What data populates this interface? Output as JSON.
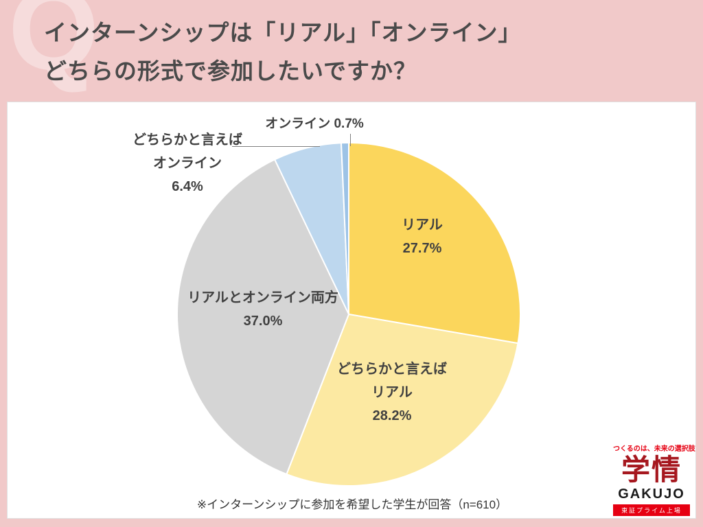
{
  "watermark": "Q",
  "header": {
    "title_line1": "インターンシップは「リアル」「オンライン」",
    "title_line2": "どちらの形式で参加したいですか？"
  },
  "chart_data": {
    "type": "pie",
    "title": "インターンシップは「リアル」「オンライン」どちらの形式で参加したいですか？",
    "categories": [
      "リアル",
      "どちらかと言えばリアル",
      "リアルとオンライン両方",
      "どちらかと言えばオンライン",
      "オンライン"
    ],
    "values": [
      27.7,
      28.2,
      37.0,
      6.4,
      0.7
    ],
    "colors": [
      "#fbd65c",
      "#fce9a2",
      "#d5d5d5",
      "#bdd7ee",
      "#9dc3e6"
    ],
    "start_angle_deg": 0,
    "direction": "clockwise",
    "legend_position": "none",
    "labels": {
      "real": {
        "name": "リアル",
        "pct": "27.7%"
      },
      "rather_real": {
        "l1": "どちらかと言えば",
        "l2": "リアル",
        "pct": "28.2%"
      },
      "both": {
        "name": "リアルとオンライン両方",
        "pct": "37.0%"
      },
      "rather_online": {
        "l1": "どちらかと言えば",
        "l2": "オンライン",
        "pct": "6.4%"
      },
      "online": {
        "text": "オンライン 0.7%"
      }
    },
    "note": "※インターンシップに参加を希望した学生が回答（n=610）"
  },
  "logo": {
    "tagline": "つくるのは、未来の選択肢",
    "mark": "学情",
    "name": "GAKUJO",
    "listing": "東証プライム上場"
  }
}
